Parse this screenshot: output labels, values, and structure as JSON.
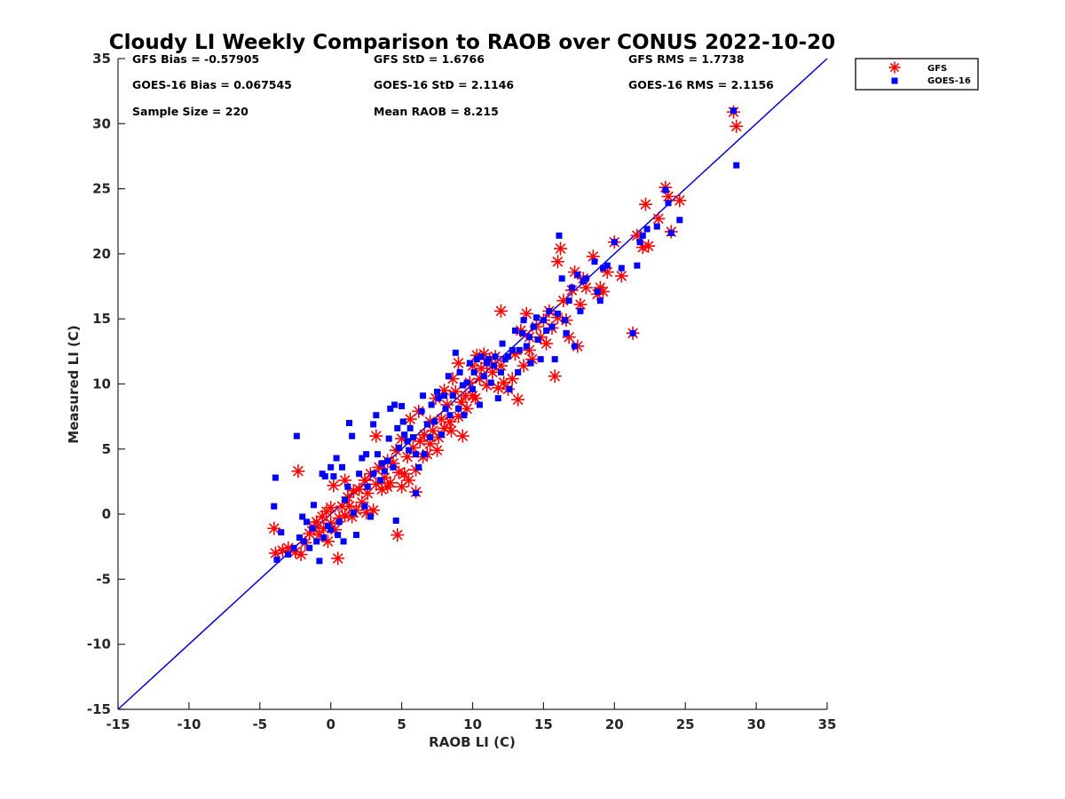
{
  "chart_data": {
    "type": "scatter",
    "title": "Cloudy LI Weekly Comparison to RAOB over CONUS 2022-10-20",
    "xlabel": "RAOB LI (C)",
    "ylabel": "Measured LI (C)",
    "xlim": [
      -15,
      35
    ],
    "ylim": [
      -15,
      35
    ],
    "xticks": [
      -15,
      -10,
      -5,
      0,
      5,
      10,
      15,
      20,
      25,
      30,
      35
    ],
    "yticks": [
      -15,
      -10,
      -5,
      0,
      5,
      10,
      15,
      20,
      25,
      30,
      35
    ],
    "grid": false,
    "legend_position": "outside top-right",
    "reference_line": {
      "x": [
        -15,
        35
      ],
      "y": [
        -15,
        35
      ],
      "color": "#0000dd"
    },
    "stats": [
      [
        "GFS Bias = -0.57905",
        "GFS StD = 1.6766",
        "GFS RMS = 1.7738"
      ],
      [
        "GOES-16 Bias = 0.067545",
        "GOES-16 StD = 2.1146",
        "GOES-16 RMS = 2.1156"
      ],
      [
        "Sample Size = 220",
        "Mean RAOB = 8.215",
        ""
      ]
    ],
    "series": [
      {
        "name": "GFS",
        "marker": "asterisk",
        "color": "#ff0000",
        "points": [
          [
            -4,
            -1.1
          ],
          [
            -3.9,
            -3
          ],
          [
            -3.4,
            -2.8
          ],
          [
            -3,
            -2.6
          ],
          [
            -2.5,
            -2.9
          ],
          [
            -2.3,
            3.3
          ],
          [
            -2.1,
            -3.1
          ],
          [
            -1.8,
            -2.2
          ],
          [
            -1.5,
            -1.5
          ],
          [
            -1.2,
            -1
          ],
          [
            -1,
            -0.6
          ],
          [
            -0.8,
            -1.6
          ],
          [
            -0.6,
            -0.2
          ],
          [
            -0.5,
            -1.1
          ],
          [
            -0.3,
            0.2
          ],
          [
            -0.2,
            -2.1
          ],
          [
            0,
            0.5
          ],
          [
            0,
            -0.7
          ],
          [
            0.2,
            2.2
          ],
          [
            0.3,
            -1.2
          ],
          [
            0.5,
            -3.4
          ],
          [
            0.6,
            -0.3
          ],
          [
            0.8,
            0.6
          ],
          [
            1,
            2.6
          ],
          [
            1,
            -0.1
          ],
          [
            1.2,
            1.3
          ],
          [
            1.3,
            0.6
          ],
          [
            1.5,
            -0.2
          ],
          [
            1.6,
            1.8
          ],
          [
            1.8,
            0.3
          ],
          [
            2,
            1.9
          ],
          [
            2.2,
            0.9
          ],
          [
            2.4,
            2.6
          ],
          [
            2.5,
            0.1
          ],
          [
            2.6,
            1.6
          ],
          [
            2.8,
            3.1
          ],
          [
            3,
            0.3
          ],
          [
            3.2,
            6
          ],
          [
            3.2,
            2.3
          ],
          [
            3.4,
            3.6
          ],
          [
            3.6,
            1.9
          ],
          [
            3.8,
            2.8
          ],
          [
            4,
            2.1
          ],
          [
            4,
            4.1
          ],
          [
            4.2,
            2.4
          ],
          [
            4.4,
            3.9
          ],
          [
            4.6,
            4.9
          ],
          [
            4.7,
            -1.6
          ],
          [
            4.8,
            3.2
          ],
          [
            5,
            2.1
          ],
          [
            5,
            5.8
          ],
          [
            5.2,
            3.1
          ],
          [
            5.4,
            4.4
          ],
          [
            5.5,
            2.6
          ],
          [
            5.6,
            7.3
          ],
          [
            5.8,
            5.1
          ],
          [
            6,
            1.7
          ],
          [
            6,
            3.4
          ],
          [
            6.2,
            7.9
          ],
          [
            6.3,
            5.6
          ],
          [
            6.5,
            4.4
          ],
          [
            6.6,
            6.1
          ],
          [
            6.8,
            4.6
          ],
          [
            7,
            7.1
          ],
          [
            7,
            5.4
          ],
          [
            7.2,
            6.4
          ],
          [
            7.4,
            8.9
          ],
          [
            7.5,
            4.9
          ],
          [
            7.6,
            5.9
          ],
          [
            7.8,
            7.3
          ],
          [
            8,
            9.5
          ],
          [
            8,
            6.6
          ],
          [
            8.2,
            8.4
          ],
          [
            8.4,
            7.1
          ],
          [
            8.5,
            6.4
          ],
          [
            8.6,
            10.4
          ],
          [
            8.8,
            9.4
          ],
          [
            9,
            7.5
          ],
          [
            9,
            11.6
          ],
          [
            9.2,
            8.6
          ],
          [
            9.3,
            6
          ],
          [
            9.5,
            9.1
          ],
          [
            9.6,
            8.1
          ],
          [
            9.8,
            10.1
          ],
          [
            10,
            11.4
          ],
          [
            10,
            9.1
          ],
          [
            10.2,
            8.9
          ],
          [
            10.3,
            12.2
          ],
          [
            10.5,
            10.4
          ],
          [
            10.6,
            11.2
          ],
          [
            10.8,
            12.3
          ],
          [
            11,
            9.9
          ],
          [
            11,
            11.6
          ],
          [
            11.2,
            11.9
          ],
          [
            11.4,
            10.9
          ],
          [
            11.6,
            12.1
          ],
          [
            11.8,
            9.7
          ],
          [
            12,
            11.4
          ],
          [
            12,
            15.6
          ],
          [
            12.2,
            10.1
          ],
          [
            12.5,
            9.6
          ],
          [
            12.8,
            10.4
          ],
          [
            13,
            12.3
          ],
          [
            13.2,
            8.8
          ],
          [
            13.4,
            14.1
          ],
          [
            13.6,
            11.4
          ],
          [
            13.8,
            15.4
          ],
          [
            14,
            12.6
          ],
          [
            14,
            13.6
          ],
          [
            14.2,
            11.9
          ],
          [
            14.5,
            14.4
          ],
          [
            14.8,
            13.6
          ],
          [
            15,
            14.9
          ],
          [
            15.2,
            13.1
          ],
          [
            15.4,
            15.6
          ],
          [
            15.6,
            14.3
          ],
          [
            15.8,
            10.6
          ],
          [
            16,
            15.1
          ],
          [
            16,
            19.4
          ],
          [
            16.2,
            20.4
          ],
          [
            16.4,
            16.4
          ],
          [
            16.6,
            14.9
          ],
          [
            16.8,
            13.6
          ],
          [
            17,
            17.2
          ],
          [
            17.2,
            18.6
          ],
          [
            17.4,
            12.9
          ],
          [
            17.6,
            16.1
          ],
          [
            17.8,
            18.1
          ],
          [
            18,
            17.4
          ],
          [
            18.5,
            19.8
          ],
          [
            18.8,
            16.9
          ],
          [
            19,
            17.4
          ],
          [
            19.2,
            17.1
          ],
          [
            19.5,
            18.6
          ],
          [
            20,
            20.9
          ],
          [
            20.5,
            18.3
          ],
          [
            21.3,
            13.9
          ],
          [
            21.6,
            21.4
          ],
          [
            22,
            20.5
          ],
          [
            22.2,
            23.8
          ],
          [
            22.4,
            20.6
          ],
          [
            23.1,
            22.7
          ],
          [
            23.6,
            25.1
          ],
          [
            23.8,
            24.4
          ],
          [
            24,
            21.7
          ],
          [
            24.6,
            24.1
          ],
          [
            28.4,
            30.9
          ],
          [
            28.6,
            29.8
          ]
        ]
      },
      {
        "name": "GOES-16",
        "marker": "square",
        "color": "#0000ff",
        "points": [
          [
            -4,
            0.6
          ],
          [
            -3.9,
            2.8
          ],
          [
            -3.8,
            -3.5
          ],
          [
            -3.5,
            -1.4
          ],
          [
            -3,
            -3.1
          ],
          [
            -2.6,
            -2.6
          ],
          [
            -2.4,
            6
          ],
          [
            -2.2,
            -1.8
          ],
          [
            -2,
            -0.2
          ],
          [
            -1.9,
            -2.1
          ],
          [
            -1.7,
            -0.6
          ],
          [
            -1.5,
            -2.6
          ],
          [
            -1.3,
            -1.1
          ],
          [
            -1.2,
            0.7
          ],
          [
            -1,
            -2.1
          ],
          [
            -0.8,
            -3.6
          ],
          [
            -0.6,
            3.1
          ],
          [
            -0.5,
            -1.8
          ],
          [
            -0.4,
            2.9
          ],
          [
            -0.2,
            -0.9
          ],
          [
            0,
            3.6
          ],
          [
            0,
            -1.2
          ],
          [
            0.2,
            2.9
          ],
          [
            0.4,
            4.3
          ],
          [
            0.5,
            -1.6
          ],
          [
            0.6,
            -0.6
          ],
          [
            0.8,
            3.6
          ],
          [
            0.9,
            -2.1
          ],
          [
            1,
            1.1
          ],
          [
            1.2,
            2.1
          ],
          [
            1.3,
            7
          ],
          [
            1.5,
            6
          ],
          [
            1.6,
            0.1
          ],
          [
            1.8,
            -1.6
          ],
          [
            2,
            3.1
          ],
          [
            2.2,
            4.3
          ],
          [
            2.4,
            0.6
          ],
          [
            2.5,
            4.6
          ],
          [
            2.6,
            2.1
          ],
          [
            2.8,
            -0.2
          ],
          [
            3,
            3.1
          ],
          [
            3,
            6.9
          ],
          [
            3.2,
            7.6
          ],
          [
            3.3,
            4.6
          ],
          [
            3.5,
            2.6
          ],
          [
            3.6,
            3.9
          ],
          [
            3.8,
            3.3
          ],
          [
            4,
            4.1
          ],
          [
            4.1,
            5.8
          ],
          [
            4.2,
            8.1
          ],
          [
            4.4,
            3.6
          ],
          [
            4.5,
            8.4
          ],
          [
            4.6,
            -0.5
          ],
          [
            4.7,
            6.6
          ],
          [
            4.8,
            5.1
          ],
          [
            5,
            8.3
          ],
          [
            5.1,
            7.1
          ],
          [
            5.2,
            6.1
          ],
          [
            5.4,
            5.6
          ],
          [
            5.5,
            4.9
          ],
          [
            5.6,
            6.6
          ],
          [
            5.8,
            5.9
          ],
          [
            6,
            1.6
          ],
          [
            6,
            4.6
          ],
          [
            6.2,
            3.6
          ],
          [
            6.4,
            7.9
          ],
          [
            6.5,
            9.1
          ],
          [
            6.6,
            4.6
          ],
          [
            6.8,
            6.9
          ],
          [
            7,
            5.9
          ],
          [
            7.1,
            8.4
          ],
          [
            7.3,
            7.1
          ],
          [
            7.5,
            9.4
          ],
          [
            7.6,
            8.9
          ],
          [
            7.8,
            6.1
          ],
          [
            8,
            9.1
          ],
          [
            8.1,
            8.1
          ],
          [
            8.3,
            10.6
          ],
          [
            8.4,
            7.6
          ],
          [
            8.6,
            9.1
          ],
          [
            8.8,
            12.4
          ],
          [
            9,
            8.1
          ],
          [
            9.1,
            10.9
          ],
          [
            9.3,
            9.9
          ],
          [
            9.4,
            7.6
          ],
          [
            9.6,
            10.1
          ],
          [
            9.8,
            11.6
          ],
          [
            10,
            9.6
          ],
          [
            10.1,
            10.9
          ],
          [
            10.3,
            11.9
          ],
          [
            10.5,
            8.4
          ],
          [
            10.6,
            12.1
          ],
          [
            10.8,
            10.6
          ],
          [
            11,
            11.6
          ],
          [
            11.1,
            11.9
          ],
          [
            11.3,
            10.1
          ],
          [
            11.5,
            11.4
          ],
          [
            11.6,
            12.1
          ],
          [
            11.8,
            8.9
          ],
          [
            12,
            10.9
          ],
          [
            12.1,
            13.1
          ],
          [
            12.3,
            11.9
          ],
          [
            12.5,
            12.1
          ],
          [
            12.6,
            9.6
          ],
          [
            12.8,
            12.6
          ],
          [
            13,
            14.1
          ],
          [
            13.2,
            10.9
          ],
          [
            13.3,
            12.6
          ],
          [
            13.5,
            13.9
          ],
          [
            13.6,
            14.9
          ],
          [
            13.8,
            12.9
          ],
          [
            14,
            13.6
          ],
          [
            14.1,
            11.6
          ],
          [
            14.3,
            14.4
          ],
          [
            14.5,
            15.1
          ],
          [
            14.6,
            13.4
          ],
          [
            14.8,
            11.9
          ],
          [
            15,
            14.9
          ],
          [
            15.2,
            14.1
          ],
          [
            15.4,
            15.6
          ],
          [
            15.6,
            14.4
          ],
          [
            15.8,
            11.9
          ],
          [
            16,
            15.4
          ],
          [
            16.1,
            21.4
          ],
          [
            16.3,
            18.1
          ],
          [
            16.5,
            14.9
          ],
          [
            16.6,
            13.9
          ],
          [
            16.8,
            16.4
          ],
          [
            17,
            17.4
          ],
          [
            17.2,
            12.9
          ],
          [
            17.4,
            18.4
          ],
          [
            17.6,
            15.6
          ],
          [
            17.8,
            17.9
          ],
          [
            18,
            18.1
          ],
          [
            18.6,
            19.4
          ],
          [
            18.8,
            17.1
          ],
          [
            19,
            16.4
          ],
          [
            19.2,
            18.9
          ],
          [
            19.5,
            19.1
          ],
          [
            20,
            20.9
          ],
          [
            20.5,
            18.9
          ],
          [
            21.3,
            13.9
          ],
          [
            21.6,
            19.1
          ],
          [
            21.8,
            20.9
          ],
          [
            22,
            21.4
          ],
          [
            22.3,
            21.9
          ],
          [
            23,
            22.1
          ],
          [
            23.6,
            24.9
          ],
          [
            23.8,
            23.9
          ],
          [
            24,
            21.6
          ],
          [
            24.6,
            22.6
          ],
          [
            28.4,
            31
          ],
          [
            28.6,
            26.8
          ]
        ]
      }
    ]
  }
}
